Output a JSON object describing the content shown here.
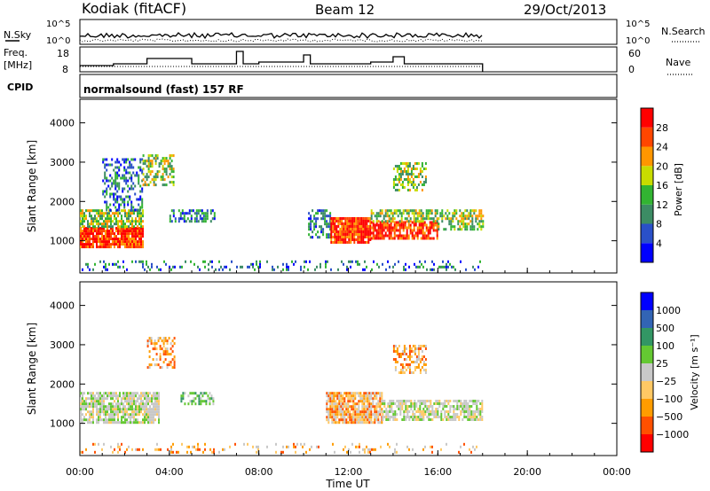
{
  "header": {
    "station": "Kodiak (fitACF)",
    "beam": "Beam 12",
    "date": "29/Oct/2013",
    "cpid_label": "CPID",
    "cpid_value": "normalsound (fast) 157 RF"
  },
  "noise_panel": {
    "left_label": "N.Sky",
    "right_label": "N.Search",
    "y_ticks": [
      "10^5",
      "10^0"
    ]
  },
  "freq_panel": {
    "left_label_1": "Freq.",
    "left_label_2": "[MHz]",
    "left_ticks": [
      "18",
      "8"
    ],
    "right_label": "Nave",
    "right_ticks": [
      "60",
      "0"
    ]
  },
  "colors": {
    "power": [
      "#0000ff",
      "#2a50c8",
      "#3c8c64",
      "#32b432",
      "#c8dc00",
      "#ff9600",
      "#ff4600",
      "#ff0000"
    ],
    "velocity": [
      "#ff0000",
      "#ff5000",
      "#ff9c00",
      "#ffc864",
      "#c8c8c8",
      "#64c832",
      "#329664",
      "#3264b4",
      "#0000ff"
    ]
  },
  "chart_data": [
    {
      "type": "heatmap",
      "name": "power",
      "ylabel": "Slant Range [km]",
      "y_ticks": [
        "1000",
        "2000",
        "3000",
        "4000"
      ],
      "y_tick_values": [
        1000,
        2000,
        3000,
        4000
      ],
      "ylim": [
        180,
        4600
      ],
      "colorbar_label": "Power [dB]",
      "colorbar_ticks": [
        "4",
        "8",
        "12",
        "16",
        "20",
        "24",
        "28"
      ],
      "data_end_hour": 18.0,
      "scatter_blobs": [
        {
          "t": [
            0.0,
            2.8
          ],
          "r": [
            850,
            1350
          ],
          "level": "high",
          "density": 0.9
        },
        {
          "t": [
            0.0,
            2.8
          ],
          "r": [
            1350,
            1800
          ],
          "level": "mid",
          "density": 0.7
        },
        {
          "t": [
            1.0,
            2.8
          ],
          "r": [
            1800,
            3100
          ],
          "level": "low",
          "density": 0.4
        },
        {
          "t": [
            2.8,
            4.2
          ],
          "r": [
            2400,
            3200
          ],
          "level": "mid",
          "density": 0.5
        },
        {
          "t": [
            4.0,
            6.0
          ],
          "r": [
            1500,
            1800
          ],
          "level": "low",
          "density": 0.6
        },
        {
          "t": [
            10.2,
            11.2
          ],
          "r": [
            1100,
            1800
          ],
          "level": "low",
          "density": 0.5
        },
        {
          "t": [
            11.2,
            13.0
          ],
          "r": [
            950,
            1600
          ],
          "level": "high",
          "density": 0.95
        },
        {
          "t": [
            13.0,
            16.0
          ],
          "r": [
            1050,
            1500
          ],
          "level": "high",
          "density": 0.8
        },
        {
          "t": [
            13.0,
            16.0
          ],
          "r": [
            1500,
            1800
          ],
          "level": "mid",
          "density": 0.6
        },
        {
          "t": [
            16.0,
            18.0
          ],
          "r": [
            1300,
            1800
          ],
          "level": "mid",
          "density": 0.6
        },
        {
          "t": [
            14.0,
            15.5
          ],
          "r": [
            2300,
            3000
          ],
          "level": "mid",
          "density": 0.5
        },
        {
          "t": [
            0.0,
            18.0
          ],
          "r": [
            250,
            500
          ],
          "level": "low",
          "density": 0.18
        }
      ]
    },
    {
      "type": "heatmap",
      "name": "velocity",
      "ylabel": "Slant Range [km]",
      "y_ticks": [
        "1000",
        "2000",
        "3000",
        "4000"
      ],
      "y_tick_values": [
        1000,
        2000,
        3000,
        4000
      ],
      "ylim": [
        180,
        4600
      ],
      "colorbar_label": "Velocity [m s⁻¹]",
      "colorbar_ticks": [
        "1000",
        "500",
        "100",
        "25",
        "−25",
        "−100",
        "−500",
        "−1000"
      ],
      "data_end_hour": 18.0,
      "scatter_blobs": [
        {
          "t": [
            0.0,
            3.5
          ],
          "r": [
            1000,
            1800
          ],
          "level": "grey",
          "density": 0.8
        },
        {
          "t": [
            3.0,
            4.2
          ],
          "r": [
            2400,
            3200
          ],
          "level": "orange",
          "density": 0.4
        },
        {
          "t": [
            4.5,
            6.0
          ],
          "r": [
            1500,
            1800
          ],
          "level": "green",
          "density": 0.5
        },
        {
          "t": [
            11.0,
            13.5
          ],
          "r": [
            1000,
            1800
          ],
          "level": "orange",
          "density": 0.85
        },
        {
          "t": [
            13.5,
            18.0
          ],
          "r": [
            1100,
            1600
          ],
          "level": "grey",
          "density": 0.7
        },
        {
          "t": [
            14.0,
            15.5
          ],
          "r": [
            2300,
            3000
          ],
          "level": "orange",
          "density": 0.5
        },
        {
          "t": [
            0.0,
            18.0
          ],
          "r": [
            250,
            500
          ],
          "level": "orange",
          "density": 0.15
        }
      ]
    }
  ],
  "x_axis": {
    "label": "Time UT",
    "ticks": [
      "00:00",
      "04:00",
      "08:00",
      "12:00",
      "16:00",
      "20:00",
      "00:00"
    ],
    "tick_hours": [
      0,
      4,
      8,
      12,
      16,
      20,
      24
    ]
  }
}
